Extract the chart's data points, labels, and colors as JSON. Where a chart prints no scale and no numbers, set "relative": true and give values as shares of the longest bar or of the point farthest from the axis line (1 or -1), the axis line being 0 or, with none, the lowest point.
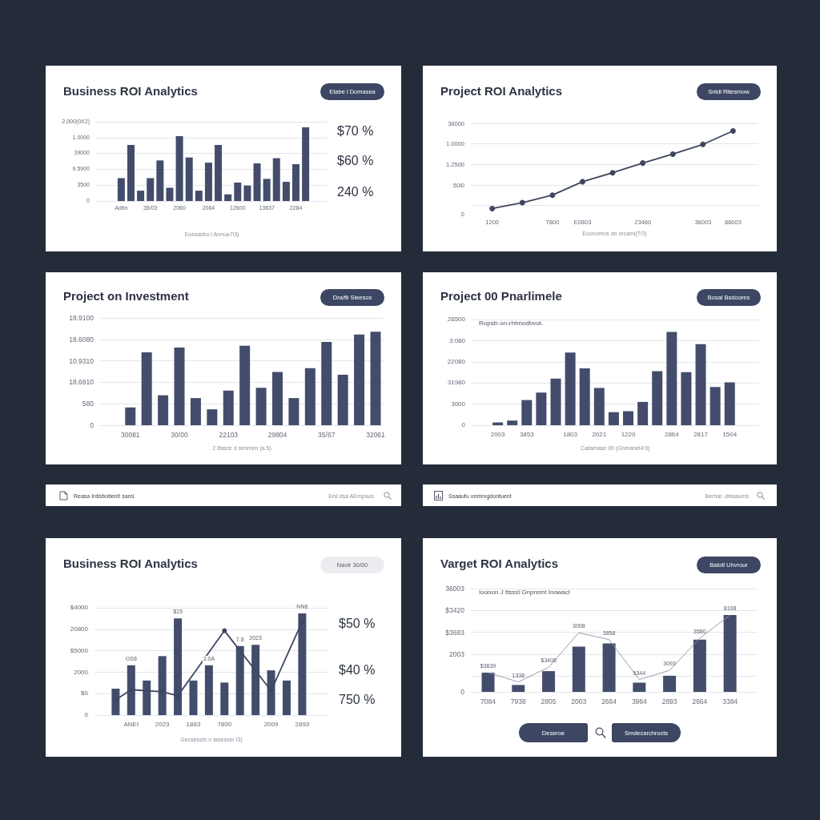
{
  "chart_data": [
    {
      "type": "bar",
      "relative": true,
      "title": "Business ROI Analytics",
      "xlabel": "Eossasbo l Annua7l3)",
      "categories": [
        "Adtin",
        null,
        null,
        "35/03",
        null,
        null,
        "2060",
        null,
        null,
        "2064",
        null,
        null,
        "12600",
        null,
        null,
        "13637",
        null,
        null,
        "2284",
        null
      ],
      "values": [
        0.31,
        0.76,
        0.14,
        0.31,
        0.55,
        0.18,
        0.88,
        0.59,
        0.14,
        0.52,
        0.76,
        0.09,
        0.25,
        0.21,
        0.51,
        0.3,
        0.58,
        0.26,
        0.5,
        1
      ],
      "color": "#434d6b",
      "grid": "y",
      "annotations": [
        "Etabe l Domasea",
        "$70 %",
        "$60 %",
        "240 %",
        "2,000(0X2)",
        "1.0000",
        "39000",
        "9.5900",
        "3500",
        "0"
      ]
    },
    {
      "type": "line",
      "relative": true,
      "title": "Project ROI Analytics",
      "xlabel": "Eoonomos dn orcami(TO)",
      "categories": [
        "1200",
        null,
        "7800",
        "E0803",
        null,
        "23460",
        null,
        "36003",
        "86003"
      ],
      "values": [
        -0.04,
        0.04,
        0.14,
        0.32,
        0.44,
        0.57,
        0.69,
        0.82,
        1
      ],
      "color": "#3f475d",
      "marker": "circle",
      "grid": "y",
      "annotations": [
        "Snidl Ritesmow",
        "38000",
        "1.0000",
        "1.2500",
        "50l0",
        "0"
      ]
    },
    {
      "type": "bar",
      "relative": true,
      "title": "Project on Investment",
      "xlabel": "2 Ifasze d senmen (a.5)",
      "categories": [
        "30081",
        null,
        null,
        "30/00",
        null,
        null,
        "22103",
        null,
        null,
        "29804",
        null,
        null,
        "35/67",
        null,
        null,
        "32061"
      ],
      "values": [
        0.19,
        0.78,
        0.32,
        0.83,
        0.29,
        0.17,
        0.37,
        0.85,
        0.4,
        0.57,
        0.29,
        0.61,
        0.89,
        0.54,
        0.97,
        1
      ],
      "color": "#434d6b",
      "grid": "y",
      "annotations": [
        "Dra/fil Sieesos",
        "18.9100",
        "18.6080",
        "10.9310",
        "18.6910",
        "580",
        "0"
      ]
    },
    {
      "type": "bar",
      "relative": true,
      "title": "Project 00 Pnarlimele",
      "subtitle": "Ropstr-on-rhtmodbvot.",
      "xlabel": "Catamase 00 (Gnmanel4:0)",
      "categories": [
        "2003",
        null,
        "3853",
        null,
        null,
        "1803",
        null,
        "2021",
        null,
        "1220",
        null,
        null,
        "2864",
        null,
        "2817",
        null,
        "1504"
      ],
      "values": [
        0.03,
        0.05,
        0.27,
        0.35,
        0.5,
        0.78,
        0.61,
        0.4,
        0.14,
        0.15,
        0.25,
        0.58,
        1,
        0.57,
        0.87,
        0.41,
        0.46
      ],
      "color": "#434d6b",
      "grid": "y",
      "annotations": [
        "Bosal Bsdoores",
        "26500",
        "3:080",
        "22080",
        "31980",
        "3000",
        "0"
      ]
    },
    {
      "type": "other",
      "annotations": [
        "Reasa Irdisbotient! saml.",
        "Enil dsa AEmpaus"
      ]
    },
    {
      "type": "other",
      "annotations": [
        "Ssaaufu onmrogdontuent",
        "Berhar. dinsaums"
      ]
    },
    {
      "type": "bar",
      "relative": true,
      "title": "Business ROI Analytics",
      "xlabel": "Gecsesstn n tasesser I3)",
      "categories": [
        null,
        "ANEI",
        null,
        "2023",
        null,
        "1883",
        null,
        "7800",
        null,
        null,
        "2009",
        null,
        "2893"
      ],
      "series": [
        {
          "color": "#434d6b",
          "values": [
            0.26,
            0.49,
            0.34,
            0.58,
            0.95,
            0.34,
            0.49,
            0.32,
            0.68,
            0.69,
            0.44,
            0.34,
            1
          ]
        },
        {
          "type": "line",
          "color": "#3d4763",
          "marker": "circle",
          "values": [
            0.15,
            0.25,
            null,
            0.23,
            0.19,
            null,
            null,
            0.83,
            null,
            null,
            0.24,
            null,
            0.92
          ]
        }
      ],
      "grid": "y",
      "annotations": [
        "Navir 30/00",
        "$50 %",
        "$40 %",
        "750 %",
        "$4000",
        "20800",
        "$5000",
        "2000",
        "$0",
        "0",
        "OS8",
        "$15",
        "3.0A",
        "7.8",
        "2023",
        "NN8"
      ]
    },
    {
      "type": "bar",
      "relative": true,
      "title": "Varget ROI Analytics",
      "subtitle": "Ioonon J ttsssl Gnpremt Inowacl",
      "categories": [
        "7084",
        "7938",
        "2805",
        "2003",
        "2664",
        "3984",
        "2893",
        "2664",
        "3384"
      ],
      "series": [
        {
          "color": "#434d6b",
          "values": [
            0.25,
            0.09,
            0.27,
            0.59,
            0.63,
            0.12,
            0.21,
            0.68,
            1
          ]
        },
        {
          "type": "line",
          "color": "#8d929e",
          "marker": "none",
          "values": [
            0.25,
            0.13,
            0.32,
            0.77,
            0.68,
            0.16,
            0.28,
            0.7,
            1
          ]
        }
      ],
      "grid": "y",
      "annotations": [
        "Balotl Uhvrour",
        "36003",
        "$3420",
        "$3683",
        "2003",
        "0",
        "$3839",
        "1338",
        "$3408",
        "3008",
        "3858",
        "5344",
        "3093",
        "3580",
        "8108"
      ]
    },
    {
      "type": "other",
      "annotations": [
        "Deseroe",
        "Smdecarchrocts"
      ]
    }
  ]
}
